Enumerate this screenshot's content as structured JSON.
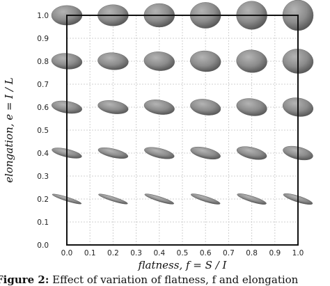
{
  "chart_data": {
    "type": "scatter",
    "title": "",
    "xlabel": "flatness, f = S / I",
    "ylabel": "elongation, e = I / L",
    "xlim": [
      0.0,
      1.0
    ],
    "ylim": [
      0.0,
      1.0
    ],
    "xticks": [
      "0.0",
      "0.1",
      "0.2",
      "0.3",
      "0.4",
      "0.5",
      "0.6",
      "0.7",
      "0.8",
      "0.9",
      "1.0"
    ],
    "yticks": [
      "0.0",
      "0.1",
      "0.2",
      "0.3",
      "0.4",
      "0.5",
      "0.6",
      "0.7",
      "0.8",
      "0.9",
      "1.0"
    ],
    "grid": true,
    "marker": "ellipsoid",
    "marker_color": "#8c8c8c",
    "flatness_values": [
      0.0,
      0.2,
      0.4,
      0.6,
      0.8,
      1.0
    ],
    "elongation_values": [
      0.2,
      0.4,
      0.6,
      0.8,
      1.0
    ]
  },
  "caption": {
    "label": "Figure 2:",
    "text": "Effect of variation of flatness, f and elongation"
  }
}
